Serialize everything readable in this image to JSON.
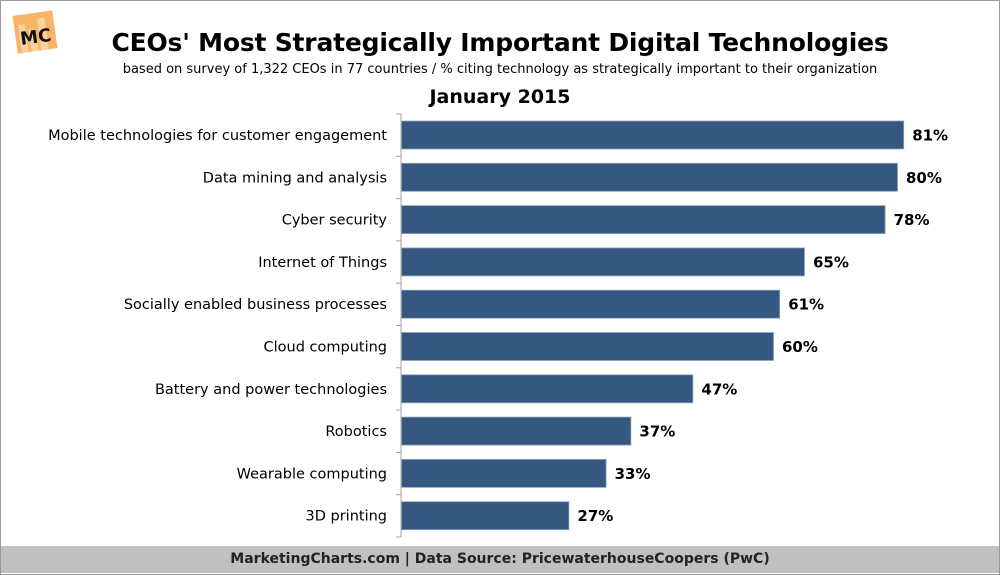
{
  "header": {
    "logo_text": "MC",
    "title": "CEOs' Most Strategically Important Digital Technologies",
    "subtitle": "based on survey of 1,322 CEOs in 77 countries / % citing technology as strategically important to their organization",
    "period": "January 2015"
  },
  "footer": {
    "text": "MarketingCharts.com | Data Source: PricewaterhouseCoopers (PwC)"
  },
  "colors": {
    "bar": "#34587f",
    "footer_bg": "#c0c0c0",
    "logo": "#f9b567"
  },
  "chart_data": {
    "type": "bar",
    "orientation": "horizontal",
    "title": "CEOs' Most Strategically Important Digital Technologies",
    "subtitle": "based on survey of 1,322 CEOs in 77 countries / % citing technology as strategically important to their organization",
    "period": "January 2015",
    "xlabel": "",
    "ylabel": "",
    "unit": "%",
    "xlim": [
      0,
      81
    ],
    "grid": false,
    "legend": "none",
    "categories": [
      "Mobile technologies for customer engagement",
      "Data mining and analysis",
      "Cyber security",
      "Internet of Things",
      "Socially enabled business processes",
      "Cloud computing",
      "Battery and power technologies",
      "Robotics",
      "Wearable computing",
      "3D printing"
    ],
    "values": [
      81,
      80,
      78,
      65,
      61,
      60,
      47,
      37,
      33,
      27
    ],
    "data_labels": [
      "81%",
      "80%",
      "78%",
      "65%",
      "61%",
      "60%",
      "47%",
      "37%",
      "33%",
      "27%"
    ]
  }
}
